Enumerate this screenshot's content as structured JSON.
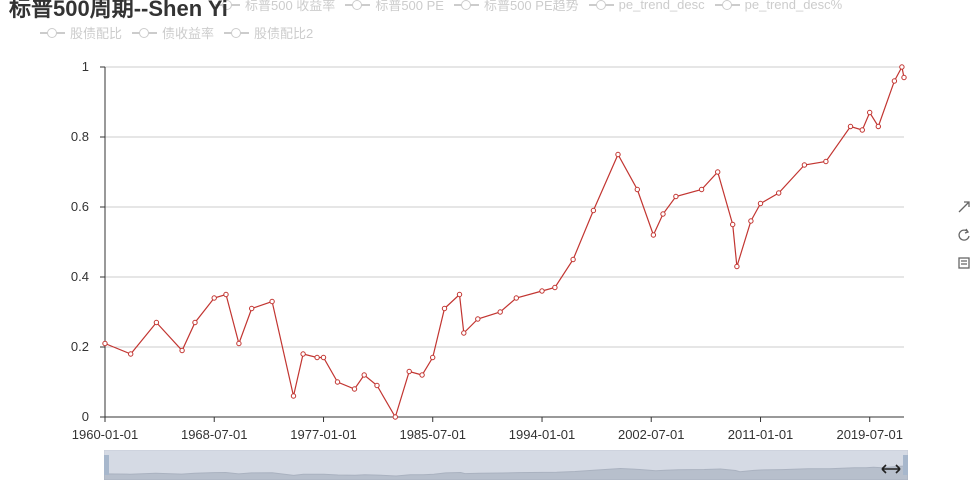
{
  "title": "标普500周期--Shen Yi",
  "legend": {
    "row1": [
      "标普500 收益率",
      "标普500 PE",
      "标普500 PE趋势",
      "pe_trend_desc",
      "pe_trend_desc%"
    ],
    "row2": [
      "股债配比",
      "债收益率",
      "股债配比2"
    ]
  },
  "toolbox": {
    "icons": [
      "data-zoom-icon",
      "restore-icon",
      "save-image-icon"
    ]
  },
  "colors": {
    "series": "#c23531",
    "axis": "#333333",
    "grid": "#cccccc",
    "legend_inactive": "#cccccc",
    "datazoom_fill": "#d5dae4"
  },
  "chart_data": {
    "type": "line",
    "series": [
      {
        "name": "标普500周期--Shen Yi",
        "x": [
          "1960-01-01",
          "1962-01-01",
          "1964-01-01",
          "1966-01-01",
          "1967-01-01",
          "1968-07-01",
          "1969-06-01",
          "1970-06-01",
          "1971-06-01",
          "1973-01-01",
          "1974-09-01",
          "1975-06-01",
          "1976-07-01",
          "1977-01-01",
          "1978-02-01",
          "1979-06-01",
          "1980-03-01",
          "1981-03-01",
          "1982-08-01",
          "1983-09-01",
          "1984-09-01",
          "1985-07-01",
          "1986-06-01",
          "1987-08-01",
          "1987-12-01",
          "1989-01-01",
          "1990-10-01",
          "1992-01-01",
          "1994-01-01",
          "1995-01-01",
          "1996-06-01",
          "1998-01-01",
          "1999-12-01",
          "2001-06-01",
          "2002-09-01",
          "2003-06-01",
          "2004-06-01",
          "2006-06-01",
          "2007-09-01",
          "2008-11-01",
          "2009-03-01",
          "2010-04-01",
          "2011-01-01",
          "2012-06-01",
          "2014-06-01",
          "2016-02-01",
          "2018-01-01",
          "2018-12-01",
          "2019-07-01",
          "2020-03-01",
          "2021-06-01",
          "2022-01-01",
          "2022-03-01"
        ],
        "y": [
          0.21,
          0.18,
          0.27,
          0.19,
          0.27,
          0.34,
          0.35,
          0.21,
          0.31,
          0.33,
          0.06,
          0.18,
          0.17,
          0.17,
          0.1,
          0.08,
          0.12,
          0.09,
          0.0,
          0.13,
          0.12,
          0.17,
          0.31,
          0.35,
          0.24,
          0.28,
          0.3,
          0.34,
          0.36,
          0.37,
          0.45,
          0.59,
          0.75,
          0.65,
          0.52,
          0.58,
          0.63,
          0.65,
          0.7,
          0.55,
          0.43,
          0.56,
          0.61,
          0.64,
          0.72,
          0.73,
          0.83,
          0.82,
          0.87,
          0.83,
          0.96,
          1.0,
          0.97
        ]
      }
    ],
    "x_tick_labels": [
      "1960-01-01",
      "1968-07-01",
      "1977-01-01",
      "1985-07-01",
      "1994-01-01",
      "2002-07-01",
      "2011-01-01",
      "2019-07-01"
    ],
    "y_tick_labels": [
      "0",
      "0.2",
      "0.4",
      "0.6",
      "0.8",
      "1"
    ],
    "ylim": [
      0,
      1
    ],
    "xlim": [
      "1960-01-01",
      "2022-03-01"
    ],
    "grid": true,
    "legend_position": "top"
  }
}
